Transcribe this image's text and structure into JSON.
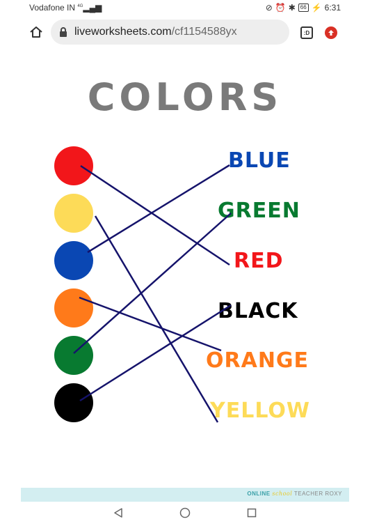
{
  "status": {
    "carrier": "Vodafone IN",
    "network": "4G",
    "battery": "66",
    "time": "6:31"
  },
  "browser": {
    "url_domain": "liveworksheets.com",
    "url_path": "/cf1154588yx",
    "tabs_label": ":D"
  },
  "worksheet": {
    "title": "COLORS",
    "circles": [
      {
        "name": "red",
        "color": "#f2161a"
      },
      {
        "name": "yellow",
        "color": "#fddb58"
      },
      {
        "name": "blue",
        "color": "#0a47b3"
      },
      {
        "name": "orange",
        "color": "#ff7a1a"
      },
      {
        "name": "green",
        "color": "#087a30"
      },
      {
        "name": "black",
        "color": "#000000"
      }
    ],
    "words": [
      {
        "label": "BLUE",
        "color": "#0a47b3"
      },
      {
        "label": "GREEN",
        "color": "#087a30"
      },
      {
        "label": "RED",
        "color": "#f2161a"
      },
      {
        "label": "BLACK",
        "color": "#000000"
      },
      {
        "label": "ORANGE",
        "color": "#ff7a1a"
      },
      {
        "label": "YELLOW",
        "color": "#fddb58"
      }
    ],
    "matches": [
      {
        "from": "red",
        "to": "RED"
      },
      {
        "from": "yellow",
        "to": "YELLOW"
      },
      {
        "from": "blue",
        "to": "BLUE"
      },
      {
        "from": "orange",
        "to": "ORANGE"
      },
      {
        "from": "green",
        "to": "GREEN"
      },
      {
        "from": "black",
        "to": "BLACK"
      }
    ],
    "line_color": "#15136b"
  },
  "footer": {
    "online": "ONLINE",
    "school": "school",
    "teacher": "TEACHER ROXY"
  }
}
